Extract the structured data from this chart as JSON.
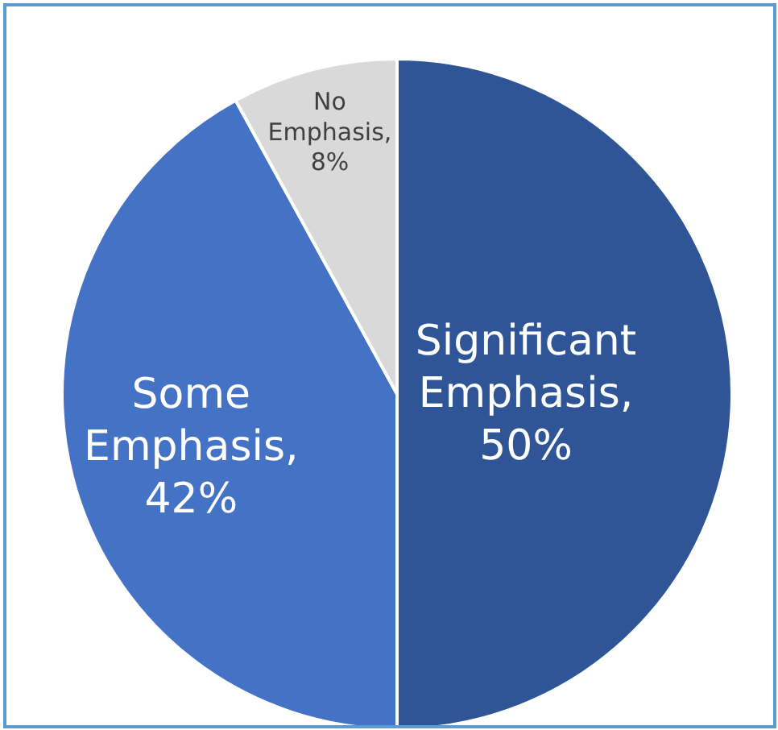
{
  "chart_data": {
    "type": "pie",
    "categories": [
      "Significant Emphasis",
      "Some Emphasis",
      "No Emphasis"
    ],
    "values": [
      50,
      42,
      8
    ],
    "colors": [
      "#2f5597",
      "#4472c4",
      "#d9d9d9"
    ],
    "value_labels": [
      ", 50%",
      ", 42%",
      ", 8%"
    ],
    "legend": false
  }
}
